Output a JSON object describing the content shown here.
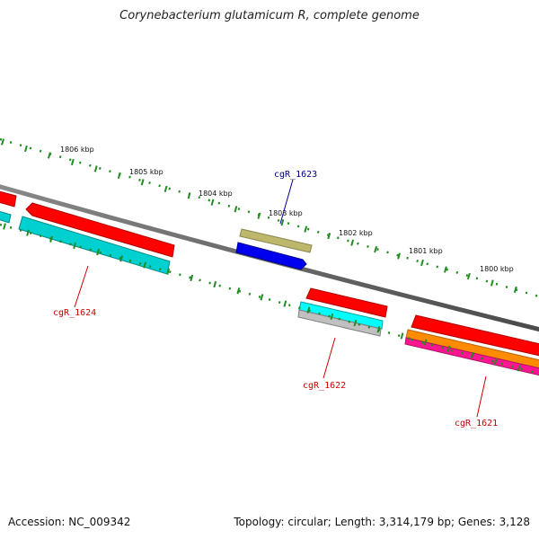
{
  "title": "Corynebacterium glutamicum R, complete genome",
  "footer": {
    "accession": "Accession: NC_009342",
    "summary": "Topology: circular; Length: 3,314,179 bp; Genes: 3,128"
  },
  "colors": {
    "backbone": "#7a7a7a",
    "tick": "#228b22",
    "label_forward": "#00008b",
    "label_reverse": "#cc0000",
    "gene_red": "#ff0000",
    "gene_cyan": "#00d0d0",
    "gene_bright_cyan": "#00ffff",
    "gene_olive": "#bdb76b",
    "gene_blue": "#0000ee",
    "gene_gray": "#c0c0c0",
    "gene_orange": "#ff8c00",
    "gene_pink": "#ff1493"
  },
  "ruler": {
    "unit": "kbp",
    "labels": [
      "1806 kbp",
      "1805 kbp",
      "1804 kbp",
      "1803 kbp",
      "1802 kbp",
      "1801 kbp",
      "1800 kbp"
    ]
  },
  "gene_labels": [
    {
      "name": "cgR_1623",
      "strand": "forward"
    },
    {
      "name": "cgR_1624",
      "strand": "reverse"
    },
    {
      "name": "cgR_1622",
      "strand": "reverse"
    },
    {
      "name": "cgR_1621",
      "strand": "reverse"
    }
  ]
}
